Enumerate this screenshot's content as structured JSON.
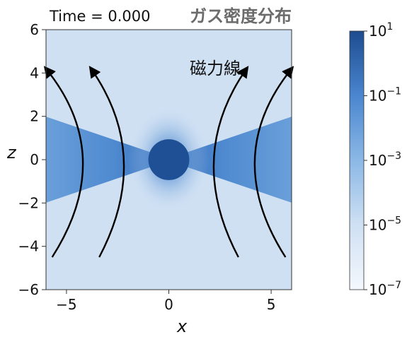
{
  "chart_data": {
    "type": "heatmap",
    "title": "ガス密度分布",
    "time_text": "Time = 0.000",
    "annotation": "磁力線",
    "xlabel": "x",
    "ylabel": "z",
    "xlim": [
      -6,
      6
    ],
    "ylim": [
      -6,
      6
    ],
    "xticks": [
      -5,
      0,
      5
    ],
    "yticks": [
      -6,
      -4,
      -2,
      0,
      2,
      4,
      6
    ],
    "xtick_labels": [
      "−5",
      "0",
      "5"
    ],
    "ytick_labels": [
      "−6",
      "−4",
      "−2",
      "0",
      "2",
      "4",
      "6"
    ],
    "colorbar": {
      "scale": "log",
      "range": [
        1e-07,
        10
      ],
      "tick_exponents": [
        1,
        -1,
        -3,
        -5,
        -7
      ],
      "colors": [
        "#f4f8fd",
        "#cfe0f3",
        "#8bb8e6",
        "#4a86cf",
        "#1d4b8f"
      ]
    },
    "features": {
      "central_sphere": {
        "x": 0,
        "z": 0,
        "radius": 1.0
      },
      "disk_half_opening_slope": 0.33,
      "field_lines": [
        {
          "z_bottom": -4.5,
          "x_bottom": -5.7,
          "x_mid": -4.2,
          "z_top": 4.2,
          "x_top": -6.0
        },
        {
          "z_bottom": -4.5,
          "x_bottom": -3.4,
          "x_mid": -2.2,
          "z_top": 4.2,
          "x_top": -3.8
        },
        {
          "z_bottom": -4.5,
          "x_bottom": 3.4,
          "x_mid": 2.2,
          "z_top": 4.2,
          "x_top": 3.8
        },
        {
          "z_bottom": -4.5,
          "x_bottom": 5.7,
          "x_mid": 4.2,
          "z_top": 4.2,
          "x_top": 6.0
        }
      ]
    }
  }
}
